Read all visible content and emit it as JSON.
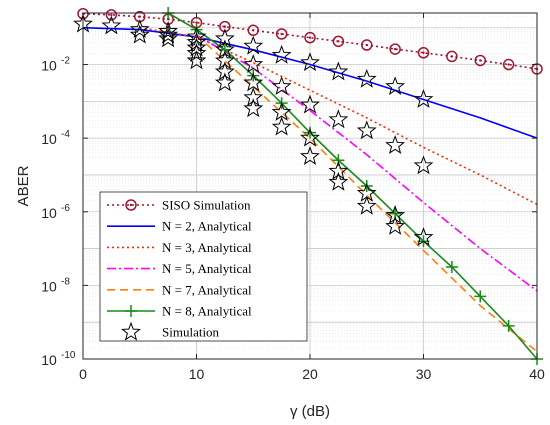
{
  "chart_data": {
    "type": "line",
    "xlabel": "γ (dB)",
    "ylabel": "ABER",
    "xlim": [
      0,
      40
    ],
    "ylim_log10": [
      -10,
      -0.6
    ],
    "y_scale": "log",
    "x_ticks": [
      0,
      10,
      20,
      30,
      40
    ],
    "y_ticks": [
      {
        "base": "10",
        "exp": "-2",
        "log10": -2
      },
      {
        "base": "10",
        "exp": "-4",
        "log10": -4
      },
      {
        "base": "10",
        "exp": "-6",
        "log10": -6
      },
      {
        "base": "10",
        "exp": "-8",
        "log10": -8
      },
      {
        "base": "10",
        "exp": "-10",
        "log10": -10
      }
    ],
    "grid": true,
    "legend_position": "bottom-left",
    "series": [
      {
        "name": "SISO Simulation",
        "style": "dotted",
        "marker": "circle",
        "color": "#a2142f",
        "x": [
          0,
          2.5,
          5,
          7.5,
          10,
          12.5,
          15,
          17.5,
          20,
          22.5,
          25,
          27.5,
          30,
          32.5,
          35,
          37.5,
          40
        ],
        "log10_y": [
          -0.62,
          -0.65,
          -0.7,
          -0.77,
          -0.86,
          -0.97,
          -1.07,
          -1.17,
          -1.27,
          -1.37,
          -1.47,
          -1.58,
          -1.68,
          -1.78,
          -1.89,
          -2.0,
          -2.12
        ]
      },
      {
        "name": "N = 2, Analytical",
        "style": "solid",
        "color": "#0000ff",
        "x": [
          0,
          5,
          10,
          15,
          20,
          25,
          30,
          35,
          40
        ],
        "log10_y": [
          -1.0,
          -1.05,
          -1.25,
          -1.6,
          -2.0,
          -2.45,
          -2.95,
          -3.45,
          -4.0
        ]
      },
      {
        "name": "N = 3, Analytical",
        "style": "dotted",
        "color": "#ff2a00",
        "x": [
          5,
          10,
          15,
          20,
          25,
          30,
          35,
          40
        ],
        "log10_y": [
          -1.0,
          -1.25,
          -1.95,
          -2.7,
          -3.45,
          -4.25,
          -5.0,
          -5.8
        ]
      },
      {
        "name": "N = 5, Analytical",
        "style": "dashdot",
        "color": "#ff00ff",
        "x": [
          10,
          15,
          20,
          25,
          30,
          35,
          40
        ],
        "log10_y": [
          -1.2,
          -2.1,
          -3.25,
          -4.45,
          -5.75,
          -7.0,
          -8.15
        ]
      },
      {
        "name": "N = 7, Analytical",
        "style": "dashed",
        "color": "#ff7f0e",
        "x": [
          10,
          15,
          20,
          25,
          30,
          35,
          40
        ],
        "log10_y": [
          -1.2,
          -2.6,
          -4.0,
          -5.55,
          -7.05,
          -8.55,
          -9.8
        ]
      },
      {
        "name": "N = 8, Analytical",
        "style": "solid",
        "marker": "plus",
        "color": "#1a8a1a",
        "x": [
          7.5,
          10,
          12.5,
          15,
          17.5,
          20,
          22.5,
          25,
          27.5,
          30,
          32.5,
          35,
          37.5,
          40
        ],
        "log10_y": [
          -0.6,
          -1.05,
          -1.6,
          -2.3,
          -3.05,
          -3.85,
          -4.6,
          -5.3,
          -6.05,
          -6.8,
          -7.5,
          -8.3,
          -9.1,
          -10.0
        ]
      },
      {
        "name": "Simulation",
        "style": "none",
        "marker": "star",
        "color": "#000000",
        "points": [
          [
            0,
            -0.9
          ],
          [
            2.5,
            -0.95
          ],
          [
            5,
            -1.05
          ],
          [
            5,
            -1.2
          ],
          [
            7.5,
            -1.1
          ],
          [
            7.5,
            -1.2
          ],
          [
            7.5,
            -1.3
          ],
          [
            10,
            -1.25
          ],
          [
            10,
            -1.4
          ],
          [
            10,
            -1.55
          ],
          [
            10,
            -1.7
          ],
          [
            10,
            -1.9
          ],
          [
            12.5,
            -1.3
          ],
          [
            12.5,
            -1.6
          ],
          [
            12.5,
            -1.9
          ],
          [
            12.5,
            -2.2
          ],
          [
            12.5,
            -2.5
          ],
          [
            15,
            -1.5
          ],
          [
            15,
            -2.0
          ],
          [
            15,
            -2.5
          ],
          [
            15,
            -2.9
          ],
          [
            15,
            -3.2
          ],
          [
            17.5,
            -1.75
          ],
          [
            17.5,
            -2.6
          ],
          [
            17.5,
            -3.3
          ],
          [
            17.5,
            -3.7
          ],
          [
            20,
            -1.95
          ],
          [
            20,
            -3.1
          ],
          [
            20,
            -4.0
          ],
          [
            20,
            -4.5
          ],
          [
            22.5,
            -2.2
          ],
          [
            22.5,
            -3.5
          ],
          [
            22.5,
            -4.9
          ],
          [
            22.5,
            -5.2
          ],
          [
            25,
            -2.4
          ],
          [
            25,
            -3.8
          ],
          [
            25,
            -5.5
          ],
          [
            25,
            -5.85
          ],
          [
            27.5,
            -2.6
          ],
          [
            27.5,
            -4.2
          ],
          [
            27.5,
            -6.1
          ],
          [
            27.5,
            -6.4
          ],
          [
            30,
            -2.95
          ],
          [
            30,
            -4.75
          ],
          [
            30,
            -6.7
          ]
        ]
      }
    ]
  }
}
